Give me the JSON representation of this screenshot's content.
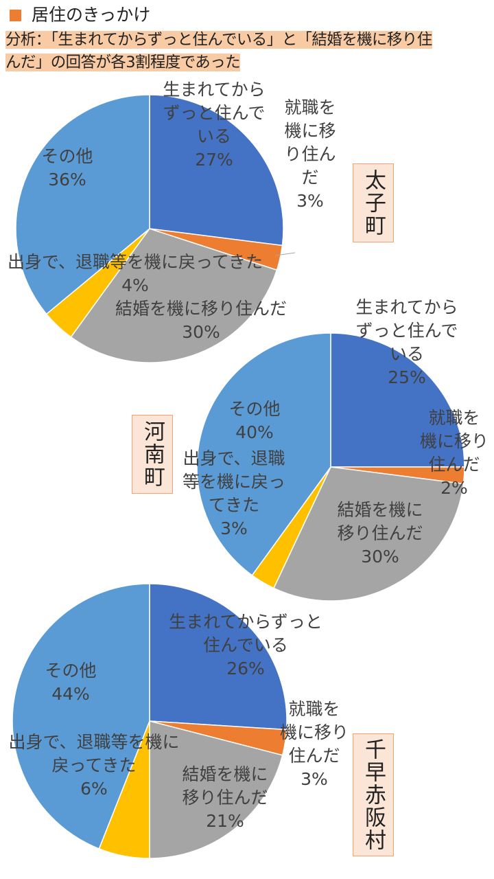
{
  "legend": {
    "label": "居住のきっかけ",
    "color": "#ed7d31"
  },
  "analysis": {
    "line1": "分析：「生まれてからずっと住んでいる」と「結婚を機に移り住",
    "line2": "んだ」の回答が各3割程度であった"
  },
  "colors": {
    "born_here": "#4472c4",
    "work_move": "#ed7d31",
    "marriage": "#a5a5a5",
    "return": "#ffc000",
    "other": "#5b9bd5",
    "label_text": "#404040",
    "box_fill": "#fbe5d6",
    "box_border": "#f0a373"
  },
  "chart_data": [
    {
      "type": "pie",
      "town": "太子町",
      "categories": [
        "生まれてからずっと住んでいる",
        "就職を機に移り住んだ",
        "結婚を機に移り住んだ",
        "出身で、退職等を機に戻ってきた",
        "その他"
      ],
      "values": [
        27,
        3,
        30,
        4,
        36
      ],
      "display_labels": [
        [
          "生まれてから",
          "ずっと住んで",
          "いる",
          "27%"
        ],
        [
          "就職を",
          "機に移",
          "り住ん",
          "だ",
          "3%"
        ],
        [
          "結婚を機に移り住んだ",
          "30%"
        ],
        [
          "出身で、退職等を機に戻ってきた",
          "4%"
        ],
        [
          "その他",
          "36%"
        ]
      ]
    },
    {
      "type": "pie",
      "town": "河南町",
      "categories": [
        "生まれてからずっと住んでいる",
        "就職を機に移り住んだ",
        "結婚を機に移り住んだ",
        "出身で、退職等を機に戻ってきた",
        "その他"
      ],
      "values": [
        25,
        2,
        30,
        3,
        40
      ],
      "display_labels": [
        [
          "生まれてから",
          "ずっと住んで",
          "いる",
          "25%"
        ],
        [
          "就職を",
          "機に移り",
          "住んだ",
          "2%"
        ],
        [
          "結婚を機に",
          "移り住んだ",
          "30%"
        ],
        [
          "出身で、退職",
          "等を機に戻っ",
          "てきた",
          "3%"
        ],
        [
          "その他",
          "40%"
        ]
      ]
    },
    {
      "type": "pie",
      "town": "千早赤阪村",
      "categories": [
        "生まれてからずっと住んでいる",
        "就職を機に移り住んだ",
        "結婚を機に移り住んだ",
        "出身で、退職等を機に戻ってきた",
        "その他"
      ],
      "values": [
        26,
        3,
        21,
        6,
        44
      ],
      "display_labels": [
        [
          "生まれてからずっと",
          "住んでいる",
          "26%"
        ],
        [
          "就職を",
          "機に移り",
          "住んだ",
          "3%"
        ],
        [
          "結婚を機に",
          "移り住んだ",
          "21%"
        ],
        [
          "出身で、退職等を機に",
          "戻ってきた",
          "6%"
        ],
        [
          "その他",
          "44%"
        ]
      ]
    }
  ]
}
